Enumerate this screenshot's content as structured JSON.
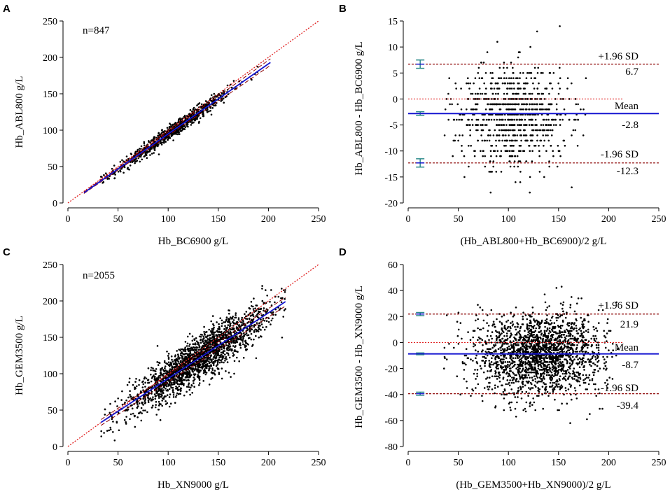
{
  "figure": {
    "background": "#ffffff",
    "axis_color": "#000000",
    "point_color": "#000000",
    "identity_color": "#e02020",
    "fit_color": "#1515d0",
    "ci_color": "#8b0000",
    "ci_marker_color": "#2e8b8b"
  },
  "chart_data": [
    {
      "panel": "A",
      "type": "scatter",
      "n_label": "n=847",
      "xlabel": "Hb_BC6900 g/L",
      "ylabel": "Hb_ABL800 g/L",
      "xlim": [
        0,
        250
      ],
      "ylim": [
        0,
        250
      ],
      "xticks": [
        0,
        50,
        100,
        150,
        200,
        250
      ],
      "yticks": [
        0,
        50,
        100,
        150,
        200,
        250
      ],
      "xrange": [
        16,
        202
      ],
      "n_points": 847,
      "noise_sd": 5,
      "x_center": 105,
      "x_spread": 28,
      "identity_line": {
        "x": [
          0,
          250
        ],
        "y": [
          0,
          250
        ]
      },
      "regression": {
        "x": [
          16,
          202
        ],
        "y": [
          14,
          193
        ]
      },
      "ci_upper": {
        "x": [
          16,
          202
        ],
        "y": [
          15,
          198
        ]
      },
      "ci_lower": {
        "x": [
          16,
          202
        ],
        "y": [
          13,
          189
        ]
      }
    },
    {
      "panel": "B",
      "type": "bland-altman",
      "xlabel": "(Hb_ABL800+Hb_BC6900)/2 g/L",
      "ylabel": "Hb_ABL800 - Hb_BC6900 g/L",
      "xlim": [
        0,
        250
      ],
      "ylim": [
        -20,
        15
      ],
      "xticks": [
        0,
        50,
        100,
        150,
        200,
        250
      ],
      "yticks": [
        -20,
        -15,
        -10,
        -5,
        0,
        5,
        10,
        15
      ],
      "xrange": [
        35,
        205
      ],
      "n_points": 847,
      "x_center": 105,
      "x_spread": 28,
      "y_sd": 4.8,
      "integer_diffs": true,
      "upper_loa": {
        "label": "+1.96 SD",
        "value": 6.7,
        "value_label": "6.7"
      },
      "mean": {
        "label": "Mean",
        "value": -2.8,
        "value_label": "-2.8"
      },
      "lower_loa": {
        "label": "-1.96 SD",
        "value": -12.3,
        "value_label": "-12.3"
      },
      "zero_line": 0,
      "ci_markers": [
        {
          "center": 6.7,
          "half_width": 0.8
        },
        {
          "center": -2.8,
          "half_width": 0.35
        },
        {
          "center": -12.3,
          "half_width": 0.8
        }
      ]
    },
    {
      "panel": "C",
      "type": "scatter",
      "n_label": "n=2055",
      "xlabel": "Hb_XN9000 g/L",
      "ylabel": "Hb_GEM3500 g/L",
      "xlim": [
        0,
        250
      ],
      "ylim": [
        0,
        250
      ],
      "xticks": [
        0,
        50,
        100,
        150,
        200,
        250
      ],
      "yticks": [
        0,
        50,
        100,
        150,
        200,
        250
      ],
      "xrange": [
        33,
        217
      ],
      "n_points": 2055,
      "noise_sd": 15,
      "x_center": 130,
      "x_spread": 35,
      "identity_line": {
        "x": [
          0,
          250
        ],
        "y": [
          0,
          250
        ]
      },
      "regression": {
        "x": [
          33,
          217
        ],
        "y": [
          33,
          199
        ]
      },
      "ci_upper": {
        "x": [
          33,
          217
        ],
        "y": [
          37,
          205
        ]
      },
      "ci_lower": {
        "x": [
          33,
          217
        ],
        "y": [
          29,
          193
        ]
      }
    },
    {
      "panel": "D",
      "type": "bland-altman",
      "xlabel": "(Hb_GEM3500+Hb_XN9000)/2 g/L",
      "ylabel": "Hb_GEM3500 - Hb_XN9000 g/L",
      "xlim": [
        0,
        250
      ],
      "ylim": [
        -80,
        60
      ],
      "xticks": [
        0,
        50,
        100,
        150,
        200,
        250
      ],
      "yticks": [
        -80,
        -60,
        -40,
        -20,
        0,
        20,
        40,
        60
      ],
      "xrange": [
        35,
        210
      ],
      "n_points": 2055,
      "x_center": 130,
      "x_spread": 32,
      "y_sd": 15.5,
      "integer_diffs": true,
      "upper_loa": {
        "label": "+1.96 SD",
        "value": 21.9,
        "value_label": "21.9"
      },
      "mean": {
        "label": "Mean",
        "value": -8.7,
        "value_label": "-8.7"
      },
      "lower_loa": {
        "label": "-1.96 SD",
        "value": -39.4,
        "value_label": "-39.4"
      },
      "zero_line": 0,
      "ci_markers": [
        {
          "center": 21.9,
          "half_width": 1.2
        },
        {
          "center": -8.7,
          "half_width": 0.7
        },
        {
          "center": -39.4,
          "half_width": 1.2
        }
      ]
    }
  ]
}
